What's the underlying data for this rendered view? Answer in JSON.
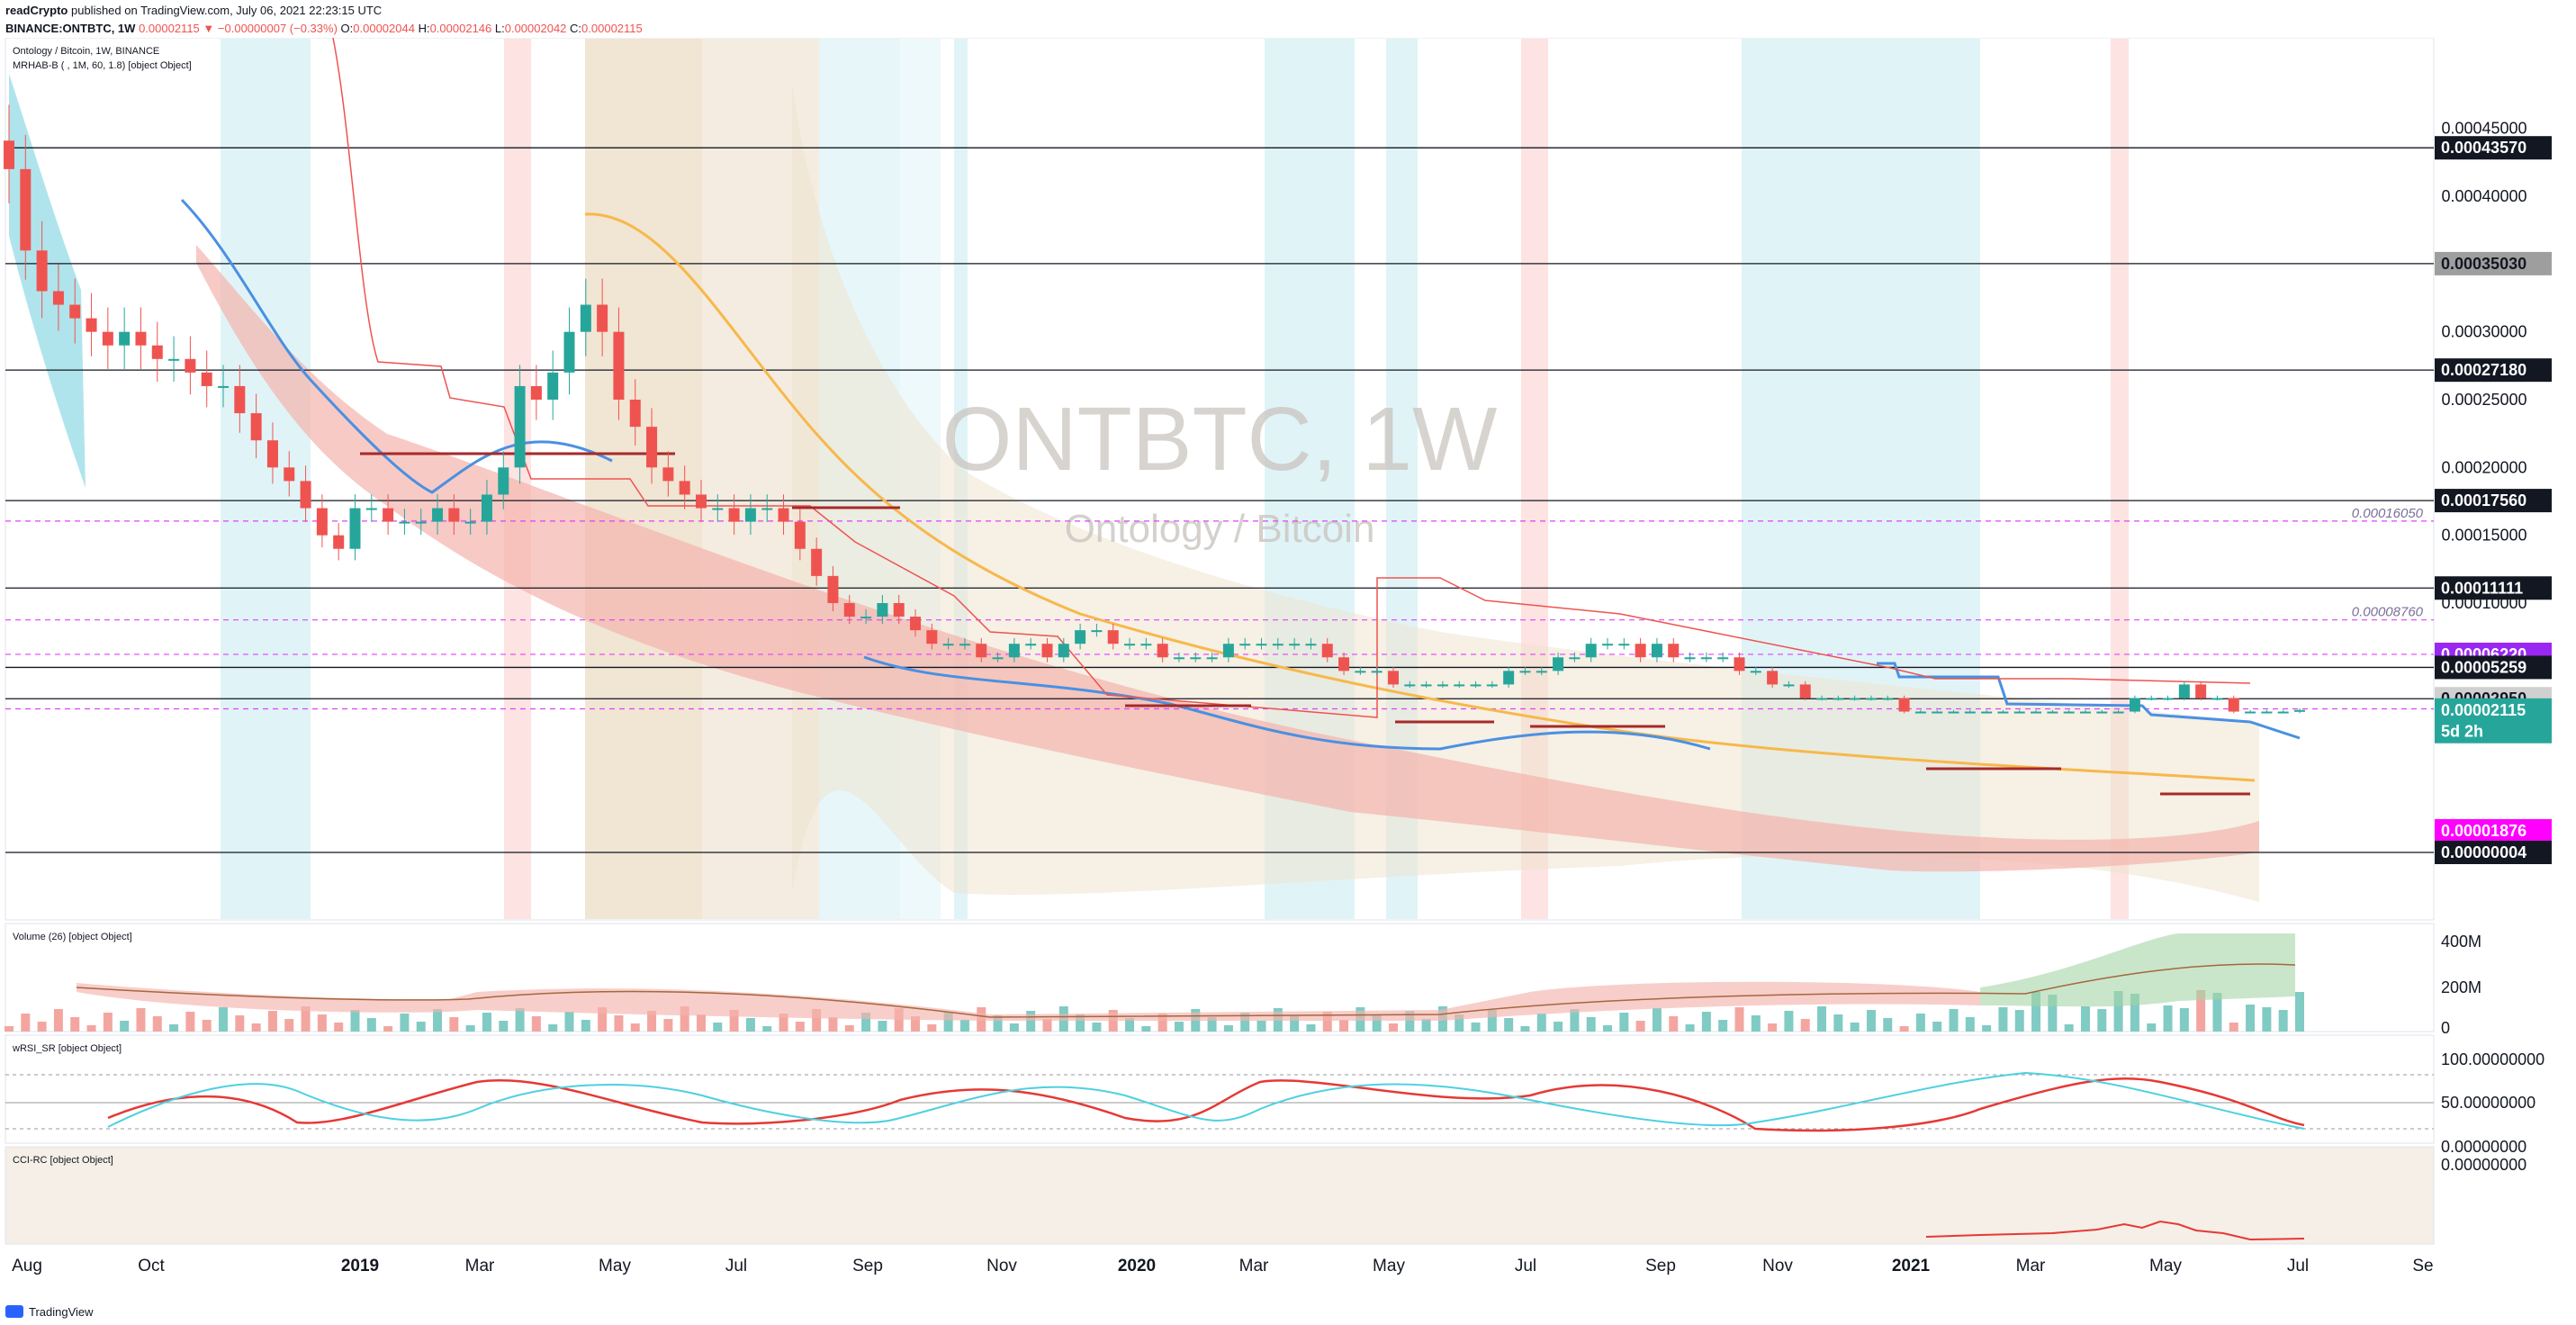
{
  "header": {
    "author": "readCrypto",
    "published": "published on TradingView.com, July 06, 2021 22:23:15 UTC",
    "symbol_line": "BINANCE:ONTBTC, 1W",
    "last": "0.00002115",
    "change": "−0.00000007 (−0.33%)",
    "o_label": "O:",
    "o_value": "0.00002044",
    "h_label": "H:",
    "h_value": "0.00002146",
    "l_label": "L:",
    "l_value": "0.00002042",
    "c_label": "C:",
    "c_value": "0.00002115"
  },
  "panes": {
    "main_title": "Ontology / Bitcoin, 1W, BINANCE",
    "main_indicator": "MRHAB-B ( , 1M, 60, 1.8) [object Object]",
    "volume_title": "Volume (26) [object Object]",
    "wrsi_title": "wRSI_SR [object Object]",
    "cci_title": "CCI-RC [object Object]"
  },
  "watermark": {
    "symbol": "ONTBTC, 1W",
    "name": "Ontology / Bitcoin"
  },
  "footer": {
    "brand": "TradingView"
  },
  "colors": {
    "up": "#26a69a",
    "down": "#ef5350",
    "ma_orange": "#f7b84b",
    "ma_blue": "#4a90e2",
    "band_tan": "#e9d8bf",
    "band_pink": "#f4b3ad",
    "band_cyan": "#8ed8e4",
    "dark_red": "#a52a2a"
  },
  "chart_data": {
    "type": "candlestick",
    "title": "Ontology / Bitcoin, 1W, BINANCE",
    "x_ticks": [
      "Aug",
      "Oct",
      "2019",
      "Mar",
      "May",
      "Jul",
      "Sep",
      "Nov",
      "2020",
      "Mar",
      "May",
      "Jul",
      "Sep",
      "Nov",
      "2021",
      "Mar",
      "May",
      "Jul",
      "Se"
    ],
    "y_ticks": [
      "0.00045000",
      "0.00040000",
      "0.00030000",
      "0.00025000",
      "0.00020000",
      "0.00015000",
      "0.00010000"
    ],
    "price_labels": [
      {
        "text": "0.00043570",
        "value": 0.0004357,
        "bg": "#131722",
        "fg": "#ffffff"
      },
      {
        "text": "0.00035030",
        "value": 0.0003503,
        "bg": "#9e9e9e",
        "fg": "#131722"
      },
      {
        "text": "0.00027180",
        "value": 0.0002718,
        "bg": "#131722",
        "fg": "#ffffff"
      },
      {
        "text": "0.00017560",
        "value": 0.0001756,
        "bg": "#131722",
        "fg": "#ffffff"
      },
      {
        "text": "0.00011111",
        "value": 0.00011111,
        "bg": "#131722",
        "fg": "#ffffff"
      },
      {
        "text": "0.00006220",
        "value": 6.22e-05,
        "bg": "#9b27f3",
        "fg": "#ffffff"
      },
      {
        "text": "0.00005259",
        "value": 5.259e-05,
        "bg": "#131722",
        "fg": "#ffffff"
      },
      {
        "text": "0.00002950",
        "value": 2.95e-05,
        "bg": "#d0d0d0",
        "fg": "#131722"
      },
      {
        "text": "0.00002115",
        "value": 2.115e-05,
        "bg": "#26a69a",
        "fg": "#ffffff"
      },
      {
        "text": "5d 2h",
        "value": 1.9e-05,
        "bg": "#26a69a",
        "fg": "#ffffff"
      },
      {
        "text": "0.00001876",
        "value": 1.876e-05,
        "bg": "#ff00ff",
        "fg": "#ffffff"
      },
      {
        "text": "0.00000004",
        "value": 4e-08,
        "bg": "#131722",
        "fg": "#ffffff"
      }
    ],
    "horizontal_levels": [
      0.0004357,
      0.0003503,
      0.0002718,
      0.0001756,
      0.00011111,
      5.259e-05,
      2.95e-05,
      4e-08
    ],
    "dashed_levels": [
      {
        "value": 0.0001605,
        "label": "0.00016050"
      },
      {
        "value": 8.76e-05,
        "label": "0.00008760"
      },
      {
        "value": 6.22e-05,
        "label": ""
      },
      {
        "value": 2.2e-05,
        "label": ""
      }
    ],
    "close": [
      0.00042,
      0.00036,
      0.00033,
      0.00032,
      0.00031,
      0.0003,
      0.00029,
      0.0003,
      0.00029,
      0.00028,
      0.00028,
      0.00027,
      0.00026,
      0.00026,
      0.00024,
      0.00022,
      0.0002,
      0.00019,
      0.00017,
      0.00015,
      0.00014,
      0.00017,
      0.00017,
      0.00016,
      0.00016,
      0.00016,
      0.00017,
      0.00016,
      0.00016,
      0.00018,
      0.0002,
      0.00026,
      0.00025,
      0.00027,
      0.0003,
      0.00032,
      0.0003,
      0.00025,
      0.00023,
      0.0002,
      0.00019,
      0.00018,
      0.00017,
      0.00017,
      0.00016,
      0.00017,
      0.00017,
      0.00016,
      0.00014,
      0.00012,
      0.0001,
      9e-05,
      9e-05,
      0.0001,
      9e-05,
      8e-05,
      7e-05,
      7e-05,
      7e-05,
      6e-05,
      6e-05,
      7e-05,
      7e-05,
      6e-05,
      7e-05,
      8e-05,
      8e-05,
      7e-05,
      7e-05,
      7e-05,
      6e-05,
      6e-05,
      6e-05,
      6e-05,
      7e-05,
      7e-05,
      7e-05,
      7e-05,
      7e-05,
      7e-05,
      6e-05,
      5e-05,
      5e-05,
      5e-05,
      4e-05,
      4e-05,
      4e-05,
      4e-05,
      4e-05,
      4e-05,
      4e-05,
      5e-05,
      5e-05,
      5e-05,
      6e-05,
      6e-05,
      7e-05,
      7e-05,
      7e-05,
      6e-05,
      7e-05,
      6e-05,
      6e-05,
      6e-05,
      6e-05,
      5e-05,
      5e-05,
      4e-05,
      4e-05,
      3e-05,
      3e-05,
      3e-05,
      3e-05,
      3e-05,
      3e-05,
      2e-05,
      2e-05,
      2e-05,
      2e-05,
      2e-05,
      2e-05,
      2e-05,
      2e-05,
      2e-05,
      2e-05,
      2e-05,
      2e-05,
      2e-05,
      2e-05,
      3e-05,
      3e-05,
      3e-05,
      4e-05,
      3e-05,
      3e-05,
      2e-05,
      2e-05,
      2e-05,
      2e-05,
      2.115e-05
    ],
    "y_range": [
      0.0,
      0.0005
    ],
    "volume_y_ticks": [
      "400M",
      "200M",
      "0"
    ],
    "wrsi_y_ticks": [
      "100.00000000",
      "50.00000000",
      "0.00000000"
    ],
    "cci_y_ticks": [
      "0.00000000"
    ]
  }
}
